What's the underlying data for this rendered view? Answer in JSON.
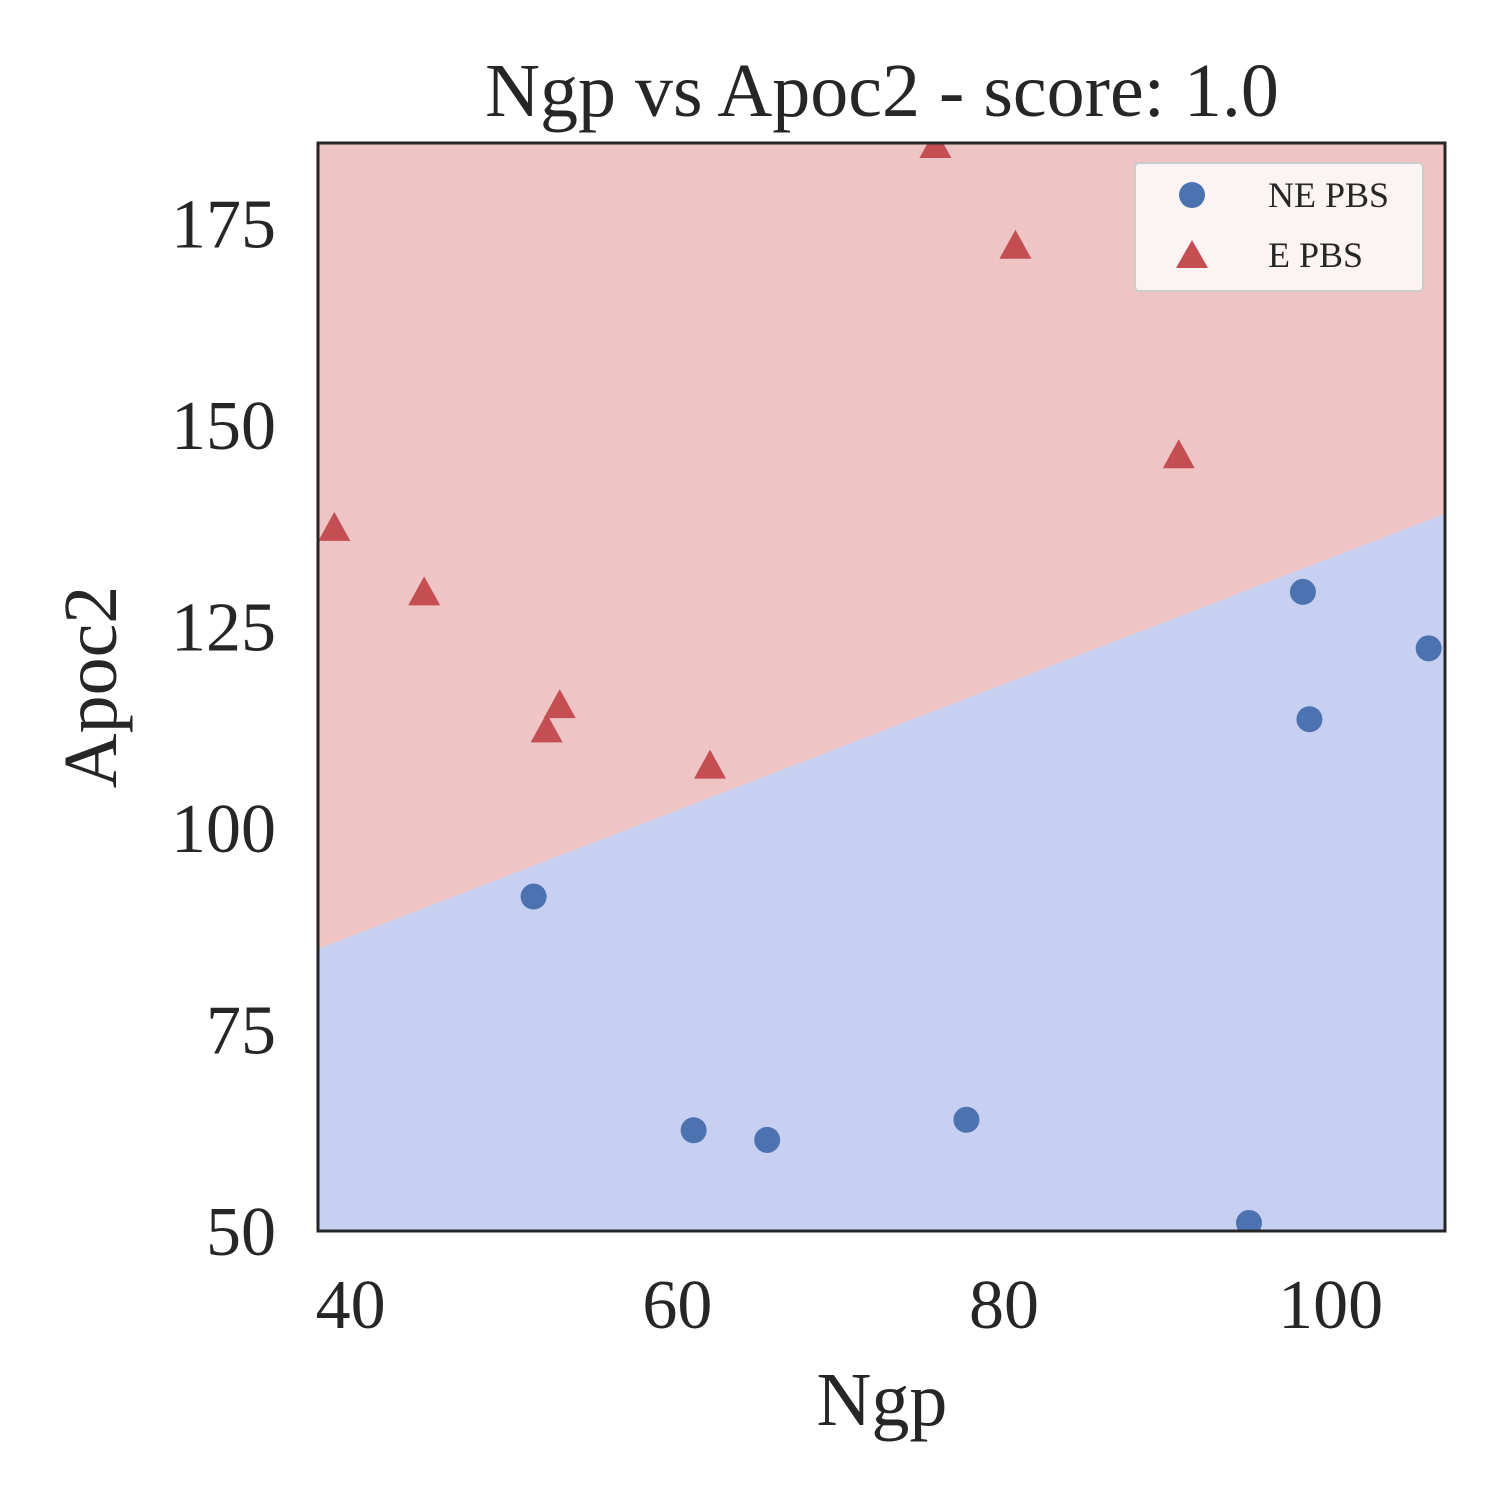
{
  "chart_data": {
    "type": "scatter",
    "title": "Ngp vs Apoc2 - score: 1.0",
    "xlabel": "Ngp",
    "ylabel": "Apoc2",
    "xlim": [
      38,
      107
    ],
    "ylim": [
      50,
      185
    ],
    "xticks": [
      "40",
      "60",
      "80",
      "100"
    ],
    "yticks": [
      "50",
      "75",
      "100",
      "125",
      "150",
      "175"
    ],
    "grid": false,
    "legend_position": "top-right",
    "decision_boundary": {
      "x": [
        38,
        107
      ],
      "y": [
        85,
        139
      ],
      "below_color": "#c8d0f2",
      "above_color": "#eec4c4"
    },
    "series": [
      {
        "name": "NE PBS",
        "marker": "circle",
        "color": "#4c72b0",
        "points": [
          {
            "x": 51.2,
            "y": 91.5
          },
          {
            "x": 61.0,
            "y": 62.5
          },
          {
            "x": 65.5,
            "y": 61.3
          },
          {
            "x": 77.7,
            "y": 63.8
          },
          {
            "x": 95.0,
            "y": 51.0
          },
          {
            "x": 98.3,
            "y": 129.3
          },
          {
            "x": 98.7,
            "y": 113.5
          },
          {
            "x": 106.0,
            "y": 122.3
          }
        ]
      },
      {
        "name": "E PBS",
        "marker": "triangle",
        "color": "#c44e52",
        "points": [
          {
            "x": 39.0,
            "y": 137.0
          },
          {
            "x": 44.5,
            "y": 129.0
          },
          {
            "x": 52.0,
            "y": 112.0
          },
          {
            "x": 52.8,
            "y": 115.0
          },
          {
            "x": 62.0,
            "y": 107.5
          },
          {
            "x": 75.8,
            "y": 184.5
          },
          {
            "x": 80.7,
            "y": 172.0
          },
          {
            "x": 90.7,
            "y": 146.0
          }
        ]
      }
    ]
  }
}
